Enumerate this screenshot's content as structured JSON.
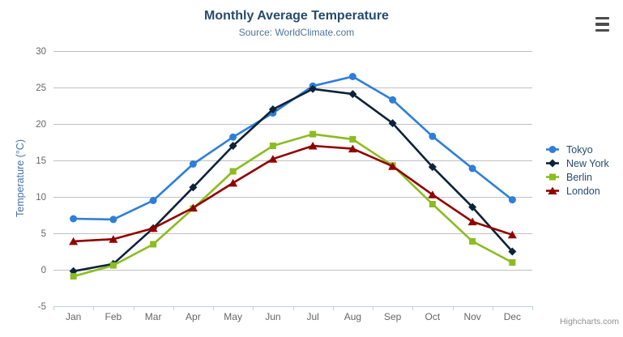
{
  "chart_data": {
    "type": "line",
    "title": "Monthly Average Temperature",
    "subtitle": "Source: WorldClimate.com",
    "ylabel": "Temperature (°C)",
    "xlabel": "",
    "ylim": [
      -5,
      30
    ],
    "ytick_step": 5,
    "grid": "horizontal",
    "legend_position": "right",
    "categories": [
      "Jan",
      "Feb",
      "Mar",
      "Apr",
      "May",
      "Jun",
      "Jul",
      "Aug",
      "Sep",
      "Oct",
      "Nov",
      "Dec"
    ],
    "series": [
      {
        "name": "Tokyo",
        "color": "#2f7ed8",
        "marker": "circle",
        "values": [
          7.0,
          6.9,
          9.5,
          14.5,
          18.2,
          21.5,
          25.2,
          26.5,
          23.3,
          18.3,
          13.9,
          9.6
        ]
      },
      {
        "name": "New York",
        "color": "#0d233a",
        "marker": "diamond",
        "values": [
          -0.2,
          0.8,
          5.7,
          11.3,
          17.0,
          22.0,
          24.8,
          24.1,
          20.1,
          14.1,
          8.6,
          2.5
        ]
      },
      {
        "name": "Berlin",
        "color": "#8bbc21",
        "marker": "square",
        "values": [
          -0.9,
          0.6,
          3.5,
          8.4,
          13.5,
          17.0,
          18.6,
          17.9,
          14.3,
          9.0,
          3.9,
          1.0
        ]
      },
      {
        "name": "London",
        "color": "#910000",
        "marker": "triangle",
        "values": [
          3.9,
          4.2,
          5.7,
          8.5,
          11.9,
          15.2,
          17.0,
          16.6,
          14.2,
          10.3,
          6.6,
          4.8
        ]
      }
    ],
    "credits": "Highcharts.com",
    "colors": {
      "title": "#274b6d",
      "subtitle": "#4d759e",
      "axis_title": "#4572a7",
      "tick_label": "#666666",
      "gridline": "#c0c0c0",
      "axis_line": "#c0d0e0",
      "legend_text": "#274b6d",
      "credits": "#909090"
    }
  },
  "ui": {
    "export_button": {
      "icon": "hamburger-menu-icon"
    }
  }
}
